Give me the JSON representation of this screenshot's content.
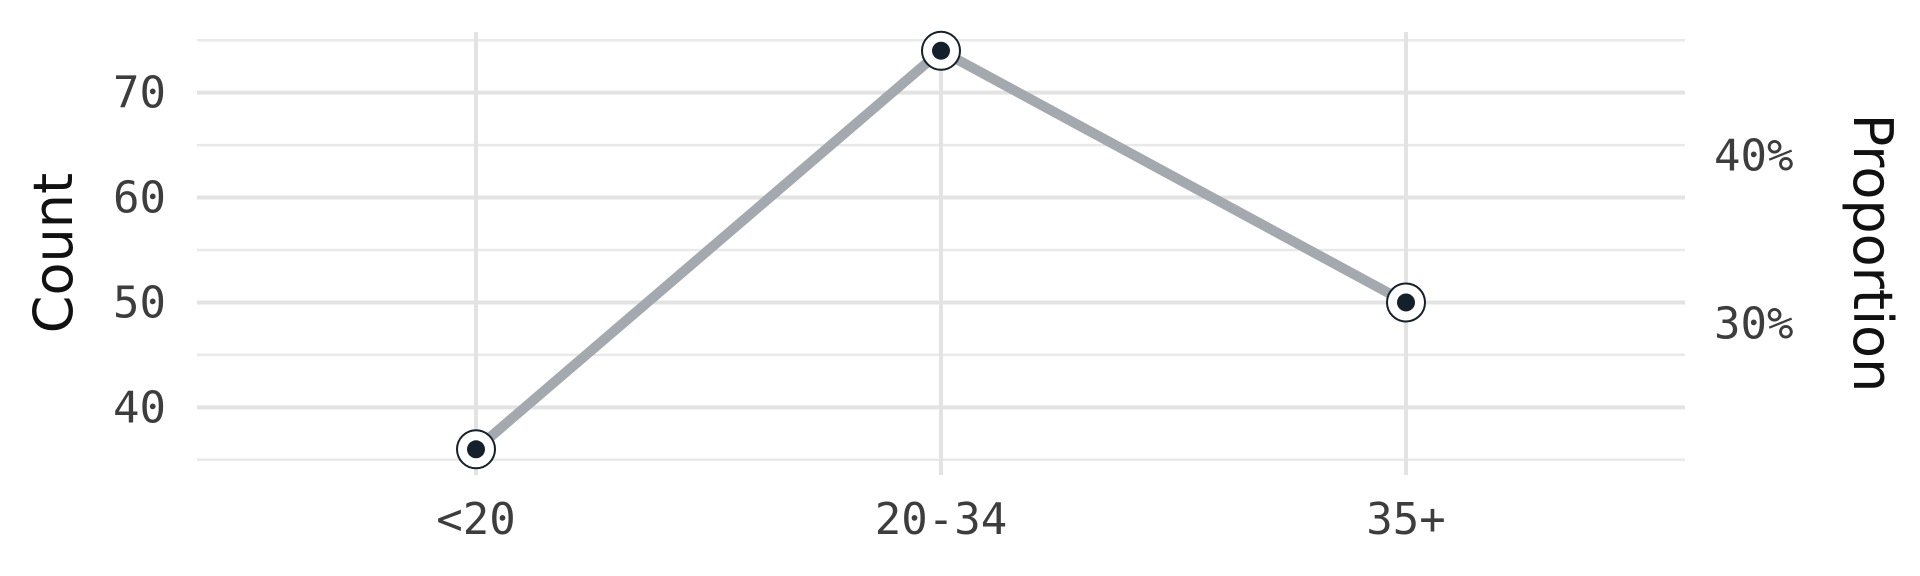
{
  "chart_data": {
    "type": "line",
    "categories": [
      "<20",
      "20-34",
      "35+"
    ],
    "series": [
      {
        "values": [
          36,
          74,
          50
        ]
      }
    ],
    "ylabel": "Count",
    "ylim": [
      34.5,
      75.5
    ],
    "yticks": [
      40,
      50,
      60,
      70
    ],
    "y2label": "Proportion",
    "y2ticks": [
      {
        "value": 64,
        "label": "40%"
      },
      {
        "value": 48,
        "label": "30%"
      }
    ],
    "grid": true,
    "legend": "none",
    "colors": {
      "line": "#a3a9ae",
      "point": "#14202b",
      "ring": "#14202b"
    }
  }
}
